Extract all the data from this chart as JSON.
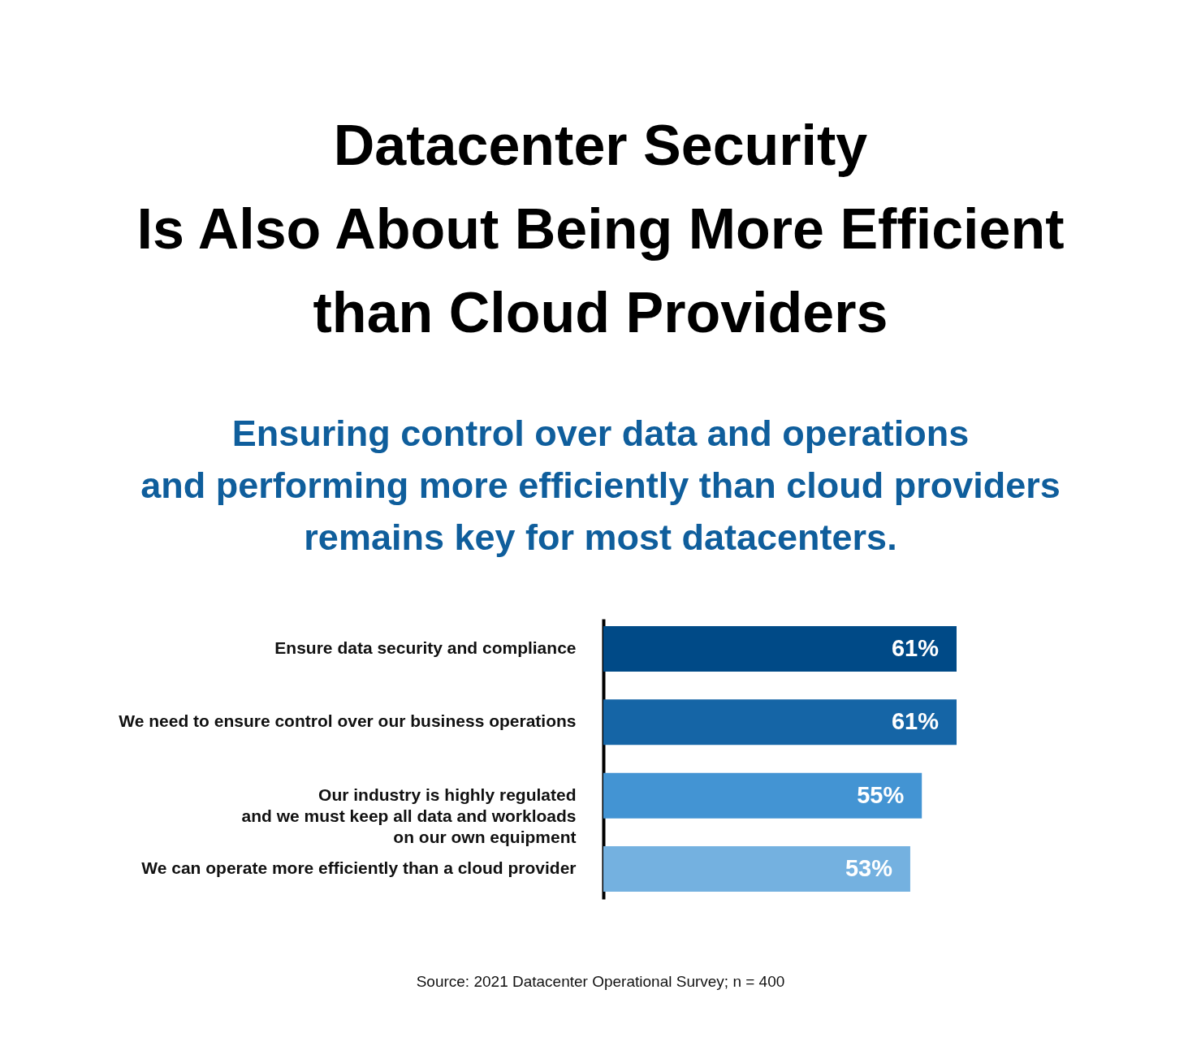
{
  "chart_data": {
    "type": "bar",
    "orientation": "horizontal",
    "title": "Datacenter Security\nIs Also About Being More Efficient\nthan Cloud Providers",
    "subtitle": "Ensuring control over data and operations\nand performing more efficiently than cloud providers\nremains key for most datacenters.",
    "categories": [
      "Ensure data security and compliance",
      "We need to ensure control over our business operations",
      "Our industry is highly regulated\nand we must keep all data and workloads\non our own equipment",
      "We can operate more efficiently than a cloud provider"
    ],
    "values": [
      61,
      61,
      55,
      53
    ],
    "value_labels": [
      "61%",
      "61%",
      "55%",
      "53%"
    ],
    "colors": [
      "#004a87",
      "#1565a6",
      "#4394d3",
      "#74b1e0"
    ],
    "tick_labels": "y",
    "annotations": [
      "Source: 2021 Datacenter Operational Survey; n = 400"
    ]
  }
}
